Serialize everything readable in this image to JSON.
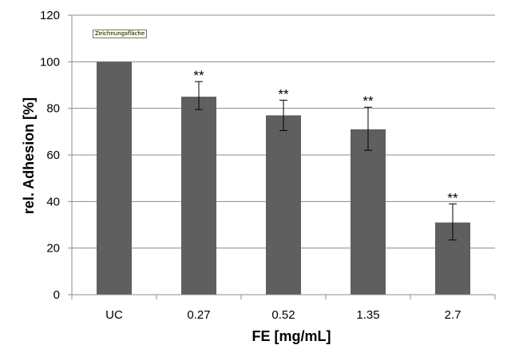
{
  "chart_data": {
    "type": "bar",
    "categories": [
      "UC",
      "0.27",
      "0.52",
      "1.35",
      "2.7"
    ],
    "values": [
      100,
      85,
      77,
      71,
      31
    ],
    "error_upper": [
      100,
      91.5,
      83.5,
      80.5,
      39
    ],
    "error_lower": [
      100,
      79.5,
      70.5,
      62,
      23.5
    ],
    "annotations": [
      "",
      "**",
      "**",
      "**",
      "**"
    ],
    "xlabel": "FE [mg/mL]",
    "ylabel": "rel. Adhesion [%]",
    "ylim": [
      0,
      120
    ],
    "yticks": [
      "0",
      "20",
      "40",
      "60",
      "80",
      "100",
      "120"
    ],
    "grid": true,
    "bar_color": "#5f5f5f",
    "grid_color": "#8c8c8c"
  },
  "tooltip": "Zeichnungsfläche"
}
